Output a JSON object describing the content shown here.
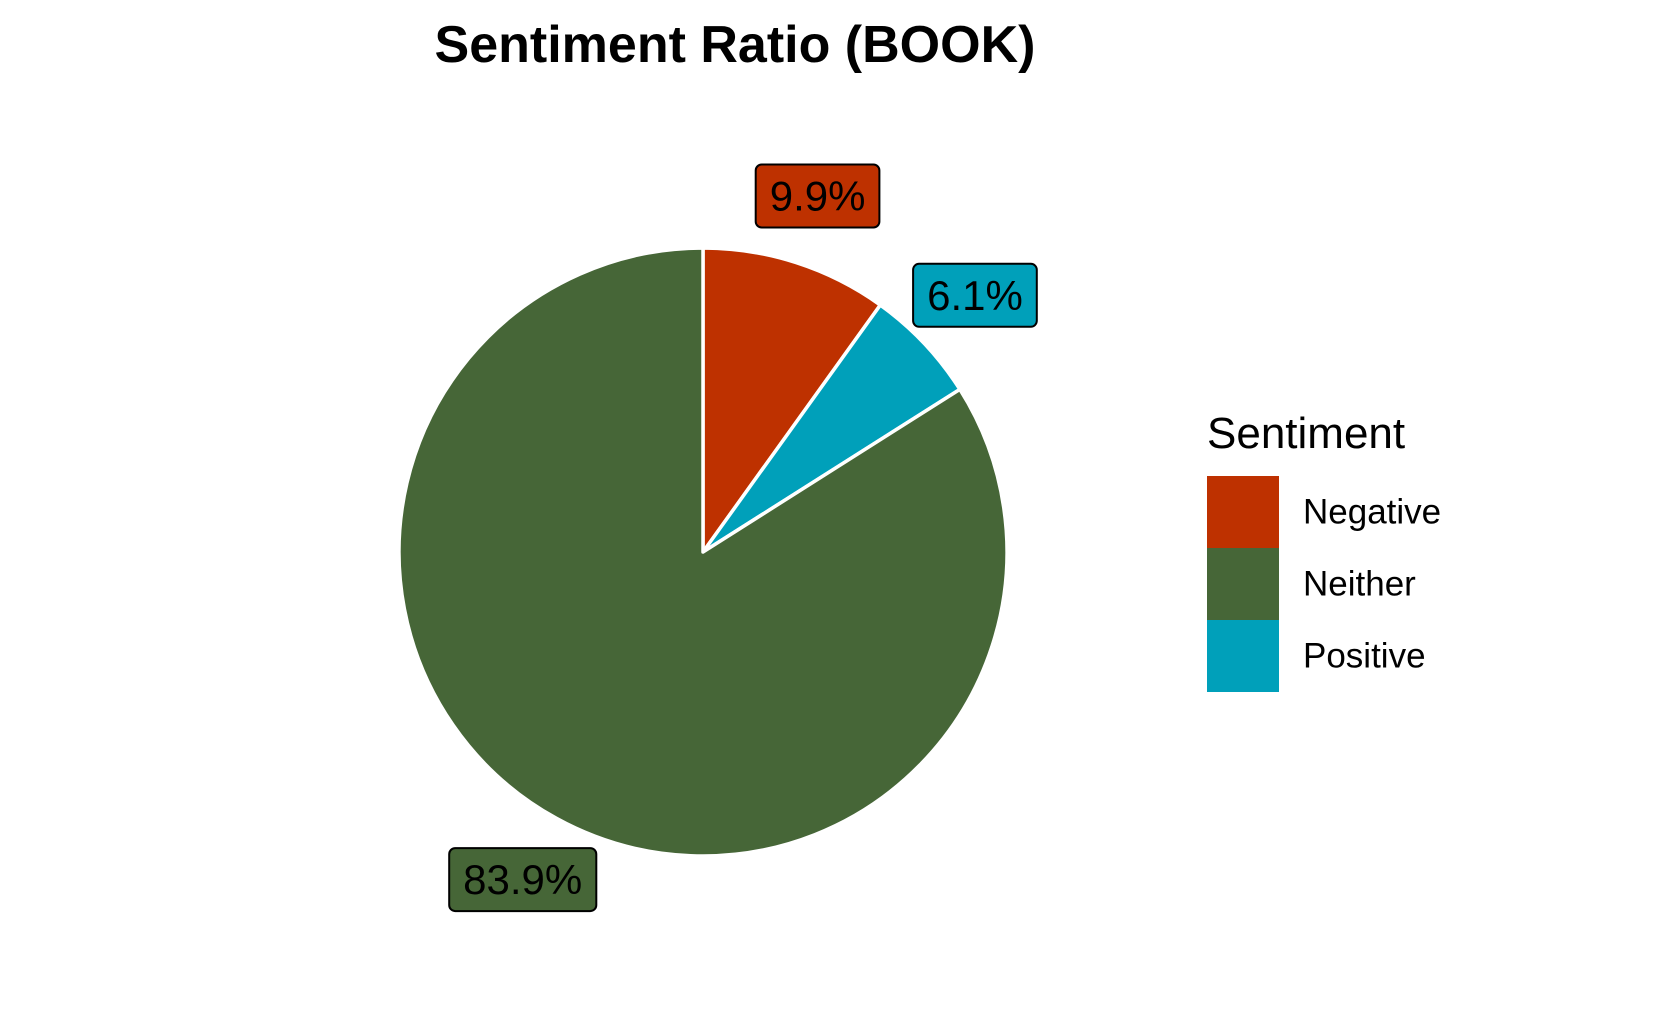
{
  "chart_data": {
    "type": "pie",
    "title": "Sentiment Ratio (BOOK)",
    "slices": [
      {
        "name": "Negative",
        "value": 9.9,
        "label": "9.9%",
        "color": "#BE3100"
      },
      {
        "name": "Positive",
        "value": 6.1,
        "label": "6.1%",
        "color": "#00A0BA"
      },
      {
        "name": "Neither",
        "value": 83.9,
        "label": "83.9%",
        "color": "#466637"
      }
    ],
    "legend": {
      "title": "Sentiment",
      "placement": "right",
      "entries": [
        {
          "name": "Negative",
          "color": "#BE3100"
        },
        {
          "name": "Neither",
          "color": "#466637"
        },
        {
          "name": "Positive",
          "color": "#00A0BA"
        }
      ]
    },
    "slice_border_color": "#ffffff",
    "label_border_color": "#000000"
  }
}
